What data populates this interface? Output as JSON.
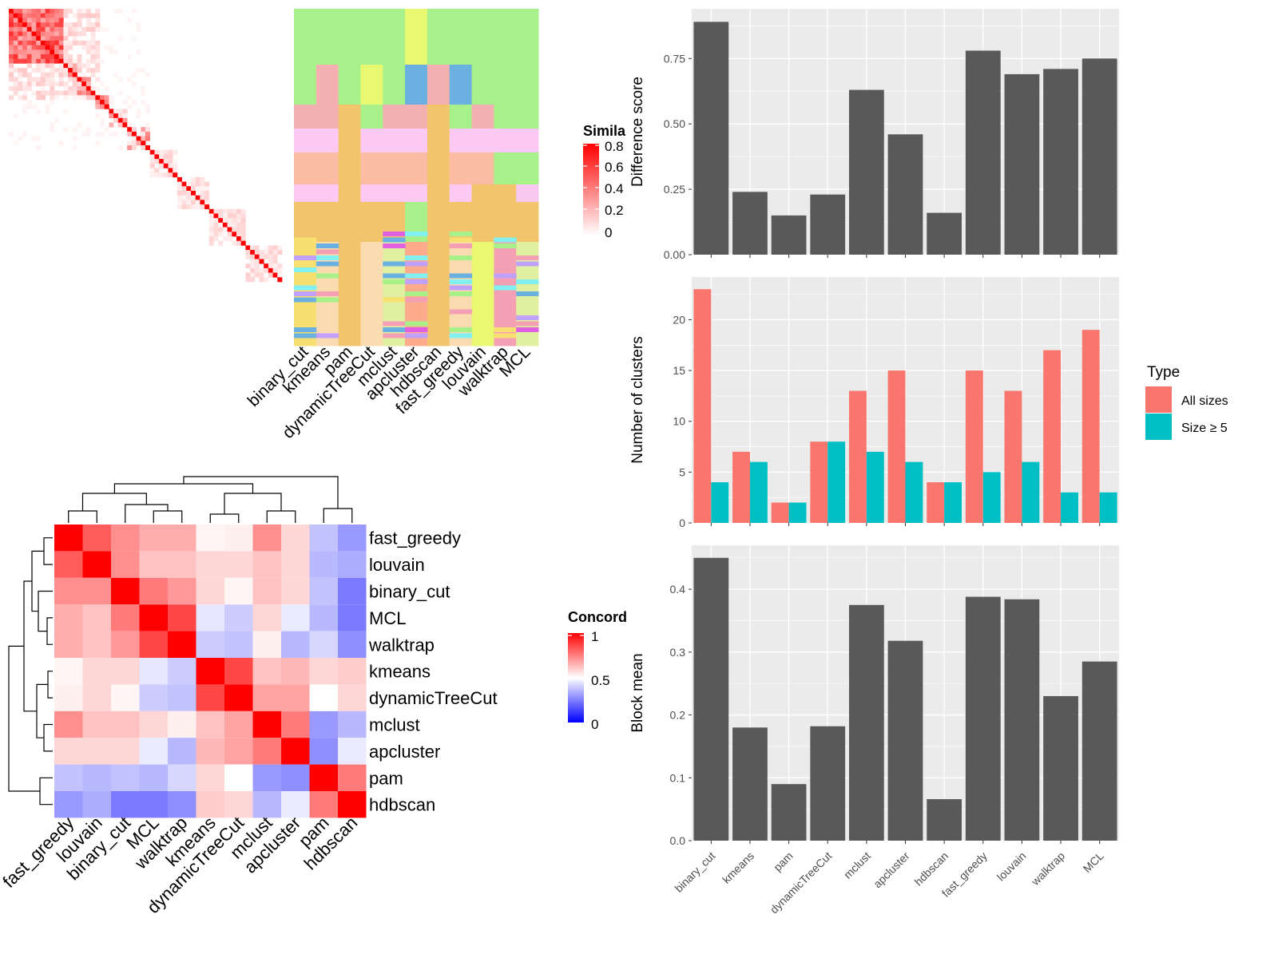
{
  "similarity_legend": {
    "title": "Simila",
    "ticks": [
      "0.8",
      "0.6",
      "0.4",
      "0.2",
      "0"
    ]
  },
  "cluster_methods": [
    "binary_cut",
    "kmeans",
    "pam",
    "dynamicTreeCut",
    "mclust",
    "apcluster",
    "hdbscan",
    "fast_greedy",
    "louvain",
    "walktrap",
    "MCL"
  ],
  "concordance_legend": {
    "title": "Concord",
    "ticks": [
      "1",
      "0.5",
      "0"
    ]
  },
  "concordance_rows": [
    "fast_greedy",
    "louvain",
    "binary_cut",
    "MCL",
    "walktrap",
    "kmeans",
    "dynamicTreeCut",
    "mclust",
    "apcluster",
    "pam",
    "hdbscan"
  ],
  "concordance_cols": [
    "fast_greedy",
    "louvain",
    "binary_cut",
    "MCL",
    "walktrap",
    "kmeans",
    "dynamicTreeCut",
    "mclust",
    "apcluster",
    "pam",
    "hdbscan"
  ],
  "type_legend": {
    "title": "Type",
    "items": [
      {
        "label": "All sizes",
        "color": "#F8766D"
      },
      {
        "label": "Size ≥ 5",
        "color": "#00BFC4"
      }
    ]
  },
  "chart_data": [
    {
      "type": "heatmap",
      "name": "concordance",
      "rows": [
        "fast_greedy",
        "louvain",
        "binary_cut",
        "MCL",
        "walktrap",
        "kmeans",
        "dynamicTreeCut",
        "mclust",
        "apcluster",
        "pam",
        "hdbscan"
      ],
      "cols": [
        "fast_greedy",
        "louvain",
        "binary_cut",
        "MCL",
        "walktrap",
        "kmeans",
        "dynamicTreeCut",
        "mclust",
        "apcluster",
        "pam",
        "hdbscan"
      ],
      "values": [
        [
          1.0,
          0.82,
          0.72,
          0.66,
          0.66,
          0.52,
          0.53,
          0.72,
          0.58,
          0.38,
          0.3
        ],
        [
          0.82,
          1.0,
          0.72,
          0.62,
          0.62,
          0.58,
          0.58,
          0.62,
          0.58,
          0.36,
          0.34
        ],
        [
          0.72,
          0.72,
          1.0,
          0.76,
          0.7,
          0.58,
          0.52,
          0.62,
          0.58,
          0.38,
          0.24
        ],
        [
          0.66,
          0.62,
          0.76,
          1.0,
          0.86,
          0.45,
          0.4,
          0.58,
          0.46,
          0.36,
          0.24
        ],
        [
          0.66,
          0.62,
          0.7,
          0.86,
          1.0,
          0.4,
          0.38,
          0.53,
          0.36,
          0.42,
          0.28
        ],
        [
          0.52,
          0.58,
          0.58,
          0.45,
          0.4,
          1.0,
          0.86,
          0.62,
          0.64,
          0.58,
          0.6
        ],
        [
          0.53,
          0.58,
          0.52,
          0.4,
          0.38,
          0.86,
          1.0,
          0.68,
          0.68,
          0.5,
          0.58
        ],
        [
          0.72,
          0.62,
          0.62,
          0.58,
          0.53,
          0.62,
          0.68,
          1.0,
          0.76,
          0.3,
          0.36
        ],
        [
          0.58,
          0.58,
          0.58,
          0.46,
          0.36,
          0.64,
          0.68,
          0.76,
          1.0,
          0.28,
          0.46
        ],
        [
          0.38,
          0.36,
          0.38,
          0.36,
          0.42,
          0.58,
          0.5,
          0.3,
          0.28,
          1.0,
          0.76
        ],
        [
          0.3,
          0.34,
          0.24,
          0.24,
          0.28,
          0.6,
          0.58,
          0.36,
          0.46,
          0.76,
          1.0
        ]
      ],
      "color_scale": {
        "min": 0,
        "mid": 0.5,
        "max": 1,
        "low": "#0000ff",
        "midColor": "#ffffff",
        "high": "#ff0000"
      }
    },
    {
      "type": "bar",
      "name": "difference-score",
      "categories": [
        "binary_cut",
        "kmeans",
        "pam",
        "dynamicTreeCut",
        "mclust",
        "apcluster",
        "hdbscan",
        "fast_greedy",
        "louvain",
        "walktrap",
        "MCL"
      ],
      "values": [
        0.89,
        0.24,
        0.15,
        0.23,
        0.63,
        0.46,
        0.16,
        0.78,
        0.69,
        0.71,
        0.75
      ],
      "ylabel": "Difference score",
      "ylim": [
        0,
        0.94
      ],
      "yticks": [
        0.0,
        0.25,
        0.5,
        0.75
      ],
      "ytick_labels": [
        "0.00",
        "0.25",
        "0.50",
        "0.75"
      ],
      "grid": true
    },
    {
      "type": "bar",
      "name": "number-of-clusters",
      "categories": [
        "binary_cut",
        "kmeans",
        "pam",
        "dynamicTreeCut",
        "mclust",
        "apcluster",
        "hdbscan",
        "fast_greedy",
        "louvain",
        "walktrap",
        "MCL"
      ],
      "series": [
        {
          "name": "All sizes",
          "values": [
            23,
            7,
            2,
            8,
            13,
            15,
            4,
            15,
            13,
            17,
            19
          ],
          "color": "#F8766D"
        },
        {
          "name": "Size ≥ 5",
          "values": [
            4,
            6,
            2,
            8,
            7,
            6,
            4,
            5,
            6,
            3,
            3
          ],
          "color": "#00BFC4"
        }
      ],
      "ylabel": "Number of clusters",
      "ylim": [
        0,
        24.2
      ],
      "yticks": [
        0,
        5,
        10,
        15,
        20
      ],
      "ytick_labels": [
        "0",
        "5",
        "10",
        "15",
        "20"
      ],
      "grid": true,
      "legend": "right"
    },
    {
      "type": "bar",
      "name": "block-mean",
      "categories": [
        "binary_cut",
        "kmeans",
        "pam",
        "dynamicTreeCut",
        "mclust",
        "apcluster",
        "hdbscan",
        "fast_greedy",
        "louvain",
        "walktrap",
        "MCL"
      ],
      "values": [
        0.45,
        0.18,
        0.09,
        0.182,
        0.375,
        0.318,
        0.066,
        0.388,
        0.384,
        0.23,
        0.285
      ],
      "ylabel": "Block mean",
      "ylim": [
        0,
        0.47
      ],
      "yticks": [
        0.0,
        0.1,
        0.2,
        0.3,
        0.4
      ],
      "ytick_labels": [
        "0.0",
        "0.1",
        "0.2",
        "0.3",
        "0.4"
      ],
      "grid": true
    }
  ]
}
